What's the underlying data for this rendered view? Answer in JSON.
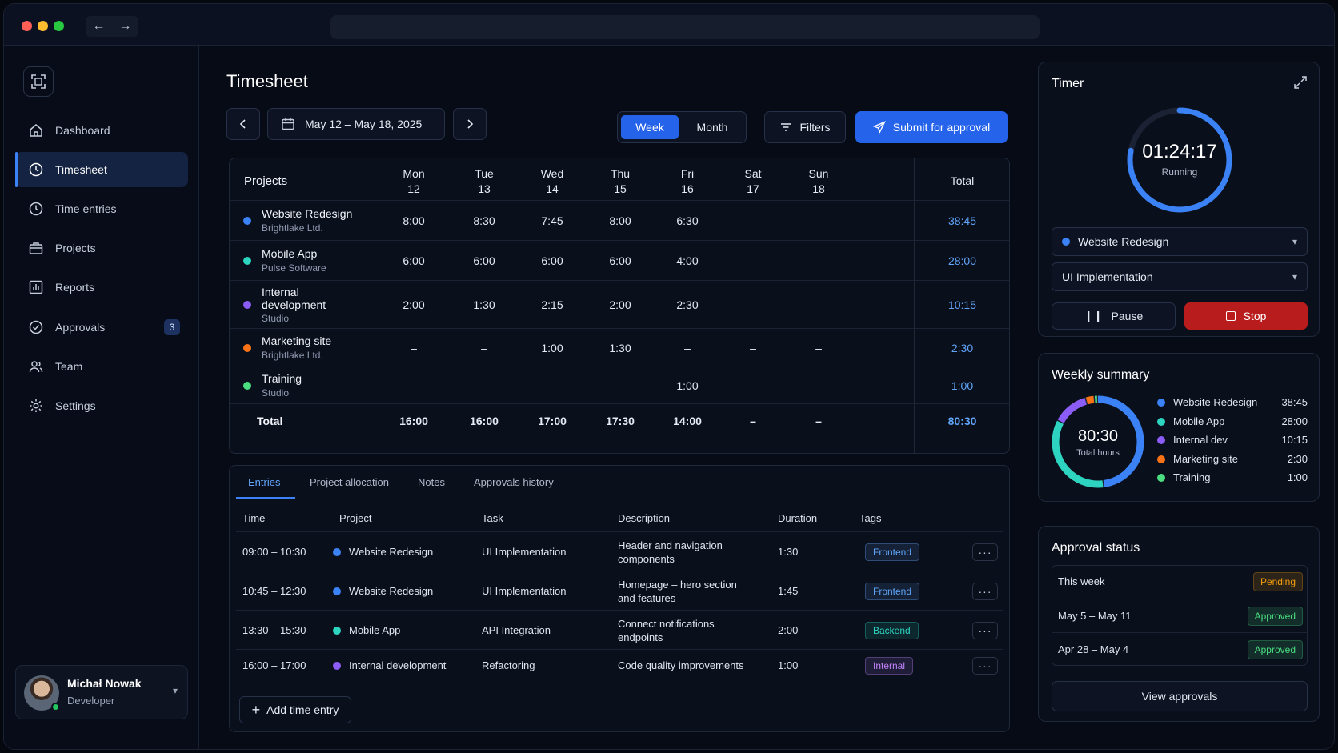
{
  "sidebar": {
    "items": [
      {
        "label": "Dashboard"
      },
      {
        "label": "Timesheet"
      },
      {
        "label": "Time entries"
      },
      {
        "label": "Projects"
      },
      {
        "label": "Reports"
      },
      {
        "label": "Approvals",
        "badge": "3"
      },
      {
        "label": "Team"
      },
      {
        "label": "Settings"
      }
    ],
    "user": {
      "name": "Michał Nowak",
      "role": "Developer"
    }
  },
  "header": {
    "title": "Timesheet",
    "date_range": "May 12 – May 18, 2025",
    "view_week": "Week",
    "view_month": "Month",
    "filters": "Filters",
    "submit": "Submit for approval"
  },
  "timesheet": {
    "col_projects": "Projects",
    "days": [
      {
        "name": "Mon",
        "num": "12"
      },
      {
        "name": "Tue",
        "num": "13"
      },
      {
        "name": "Wed",
        "num": "14"
      },
      {
        "name": "Thu",
        "num": "15"
      },
      {
        "name": "Fri",
        "num": "16"
      },
      {
        "name": "Sat",
        "num": "17"
      },
      {
        "name": "Sun",
        "num": "18"
      }
    ],
    "col_total": "Total",
    "rows": [
      {
        "name": "Website Redesign",
        "client": "Brightlake Ltd.",
        "color": "#3b82f6",
        "hours": [
          "8:00",
          "8:30",
          "7:45",
          "8:00",
          "6:30",
          "–",
          "–"
        ],
        "total": "38:45"
      },
      {
        "name": "Mobile App",
        "client": "Pulse Software",
        "color": "#2dd4bf",
        "hours": [
          "6:00",
          "6:00",
          "6:00",
          "6:00",
          "4:00",
          "–",
          "–"
        ],
        "total": "28:00"
      },
      {
        "name": "Internal development",
        "name_line1": "Internal",
        "name_line2": "development",
        "client": "Studio",
        "color": "#8b5cf6",
        "hours": [
          "2:00",
          "1:30",
          "2:15",
          "2:00",
          "2:30",
          "–",
          "–"
        ],
        "total": "10:15"
      },
      {
        "name": "Marketing site",
        "client": "Brightlake Ltd.",
        "color": "#f97316",
        "hours": [
          "–",
          "–",
          "1:00",
          "1:30",
          "–",
          "–",
          "–"
        ],
        "total": "2:30"
      },
      {
        "name": "Training",
        "client": "Studio",
        "color": "#4ade80",
        "hours": [
          "–",
          "–",
          "–",
          "–",
          "1:00",
          "–",
          "–"
        ],
        "total": "1:00"
      }
    ],
    "total_row": {
      "label": "Total",
      "hours": [
        "16:00",
        "16:00",
        "17:00",
        "17:30",
        "14:00",
        "–",
        "–"
      ],
      "total": "80:30"
    }
  },
  "entries": {
    "tabs": [
      "Entries",
      "Project allocation",
      "Notes",
      "Approvals history"
    ],
    "headers": {
      "time": "Time",
      "project": "Project",
      "task": "Task",
      "description": "Description",
      "duration": "Duration",
      "tags": "Tags"
    },
    "rows": [
      {
        "time": "09:00 – 10:30",
        "project": "Website Redesign",
        "color": "#3b82f6",
        "task": "UI Implementation",
        "desc1": "Header and navigation",
        "desc2": "components",
        "duration": "1:30",
        "tag": "Frontend",
        "tag_color": "#60a5fa"
      },
      {
        "time": "10:45 – 12:30",
        "project": "Website Redesign",
        "color": "#3b82f6",
        "task": "UI Implementation",
        "desc1": "Homepage – hero section",
        "desc2": "and features",
        "duration": "1:45",
        "tag": "Frontend",
        "tag_color": "#60a5fa"
      },
      {
        "time": "13:30 – 15:30",
        "project": "Mobile App",
        "color": "#2dd4bf",
        "task": "API Integration",
        "desc1": "Connect notifications",
        "desc2": "endpoints",
        "duration": "2:00",
        "tag": "Backend",
        "tag_color": "#2dd4bf"
      },
      {
        "time": "16:00 – 17:00",
        "project": "Internal development",
        "color": "#8b5cf6",
        "task": "Refactoring",
        "desc1": "Code quality improvements",
        "desc2": "",
        "duration": "1:00",
        "tag": "Internal",
        "tag_color": "#c084fc"
      }
    ],
    "add_label": "Add time entry"
  },
  "timer": {
    "title": "Timer",
    "time": "01:24:17",
    "status": "Running",
    "progress": 0.78,
    "project": "Website Redesign",
    "task": "UI Implementation",
    "pause": "Pause",
    "stop": "Stop"
  },
  "weekly": {
    "title": "Weekly summary",
    "total": "80:30",
    "total_label": "Total hours",
    "items": [
      {
        "name": "Website Redesign",
        "value": "38:45",
        "minutes": 2325,
        "color": "#3b82f6"
      },
      {
        "name": "Mobile App",
        "value": "28:00",
        "minutes": 1680,
        "color": "#2dd4bf"
      },
      {
        "name": "Internal dev",
        "value": "10:15",
        "minutes": 615,
        "color": "#8b5cf6"
      },
      {
        "name": "Marketing site",
        "value": "2:30",
        "minutes": 150,
        "color": "#f97316"
      },
      {
        "name": "Training",
        "value": "1:00",
        "minutes": 60,
        "color": "#4ade80"
      }
    ]
  },
  "approval": {
    "title": "Approval status",
    "rows": [
      {
        "label": "This week",
        "status": "Pending",
        "color": "#f59e0b"
      },
      {
        "label": "May 5 – May 11",
        "status": "Approved",
        "color": "#4ade80"
      },
      {
        "label": "Apr 28 – May 4",
        "status": "Approved",
        "color": "#4ade80"
      }
    ],
    "view_label": "View approvals"
  }
}
